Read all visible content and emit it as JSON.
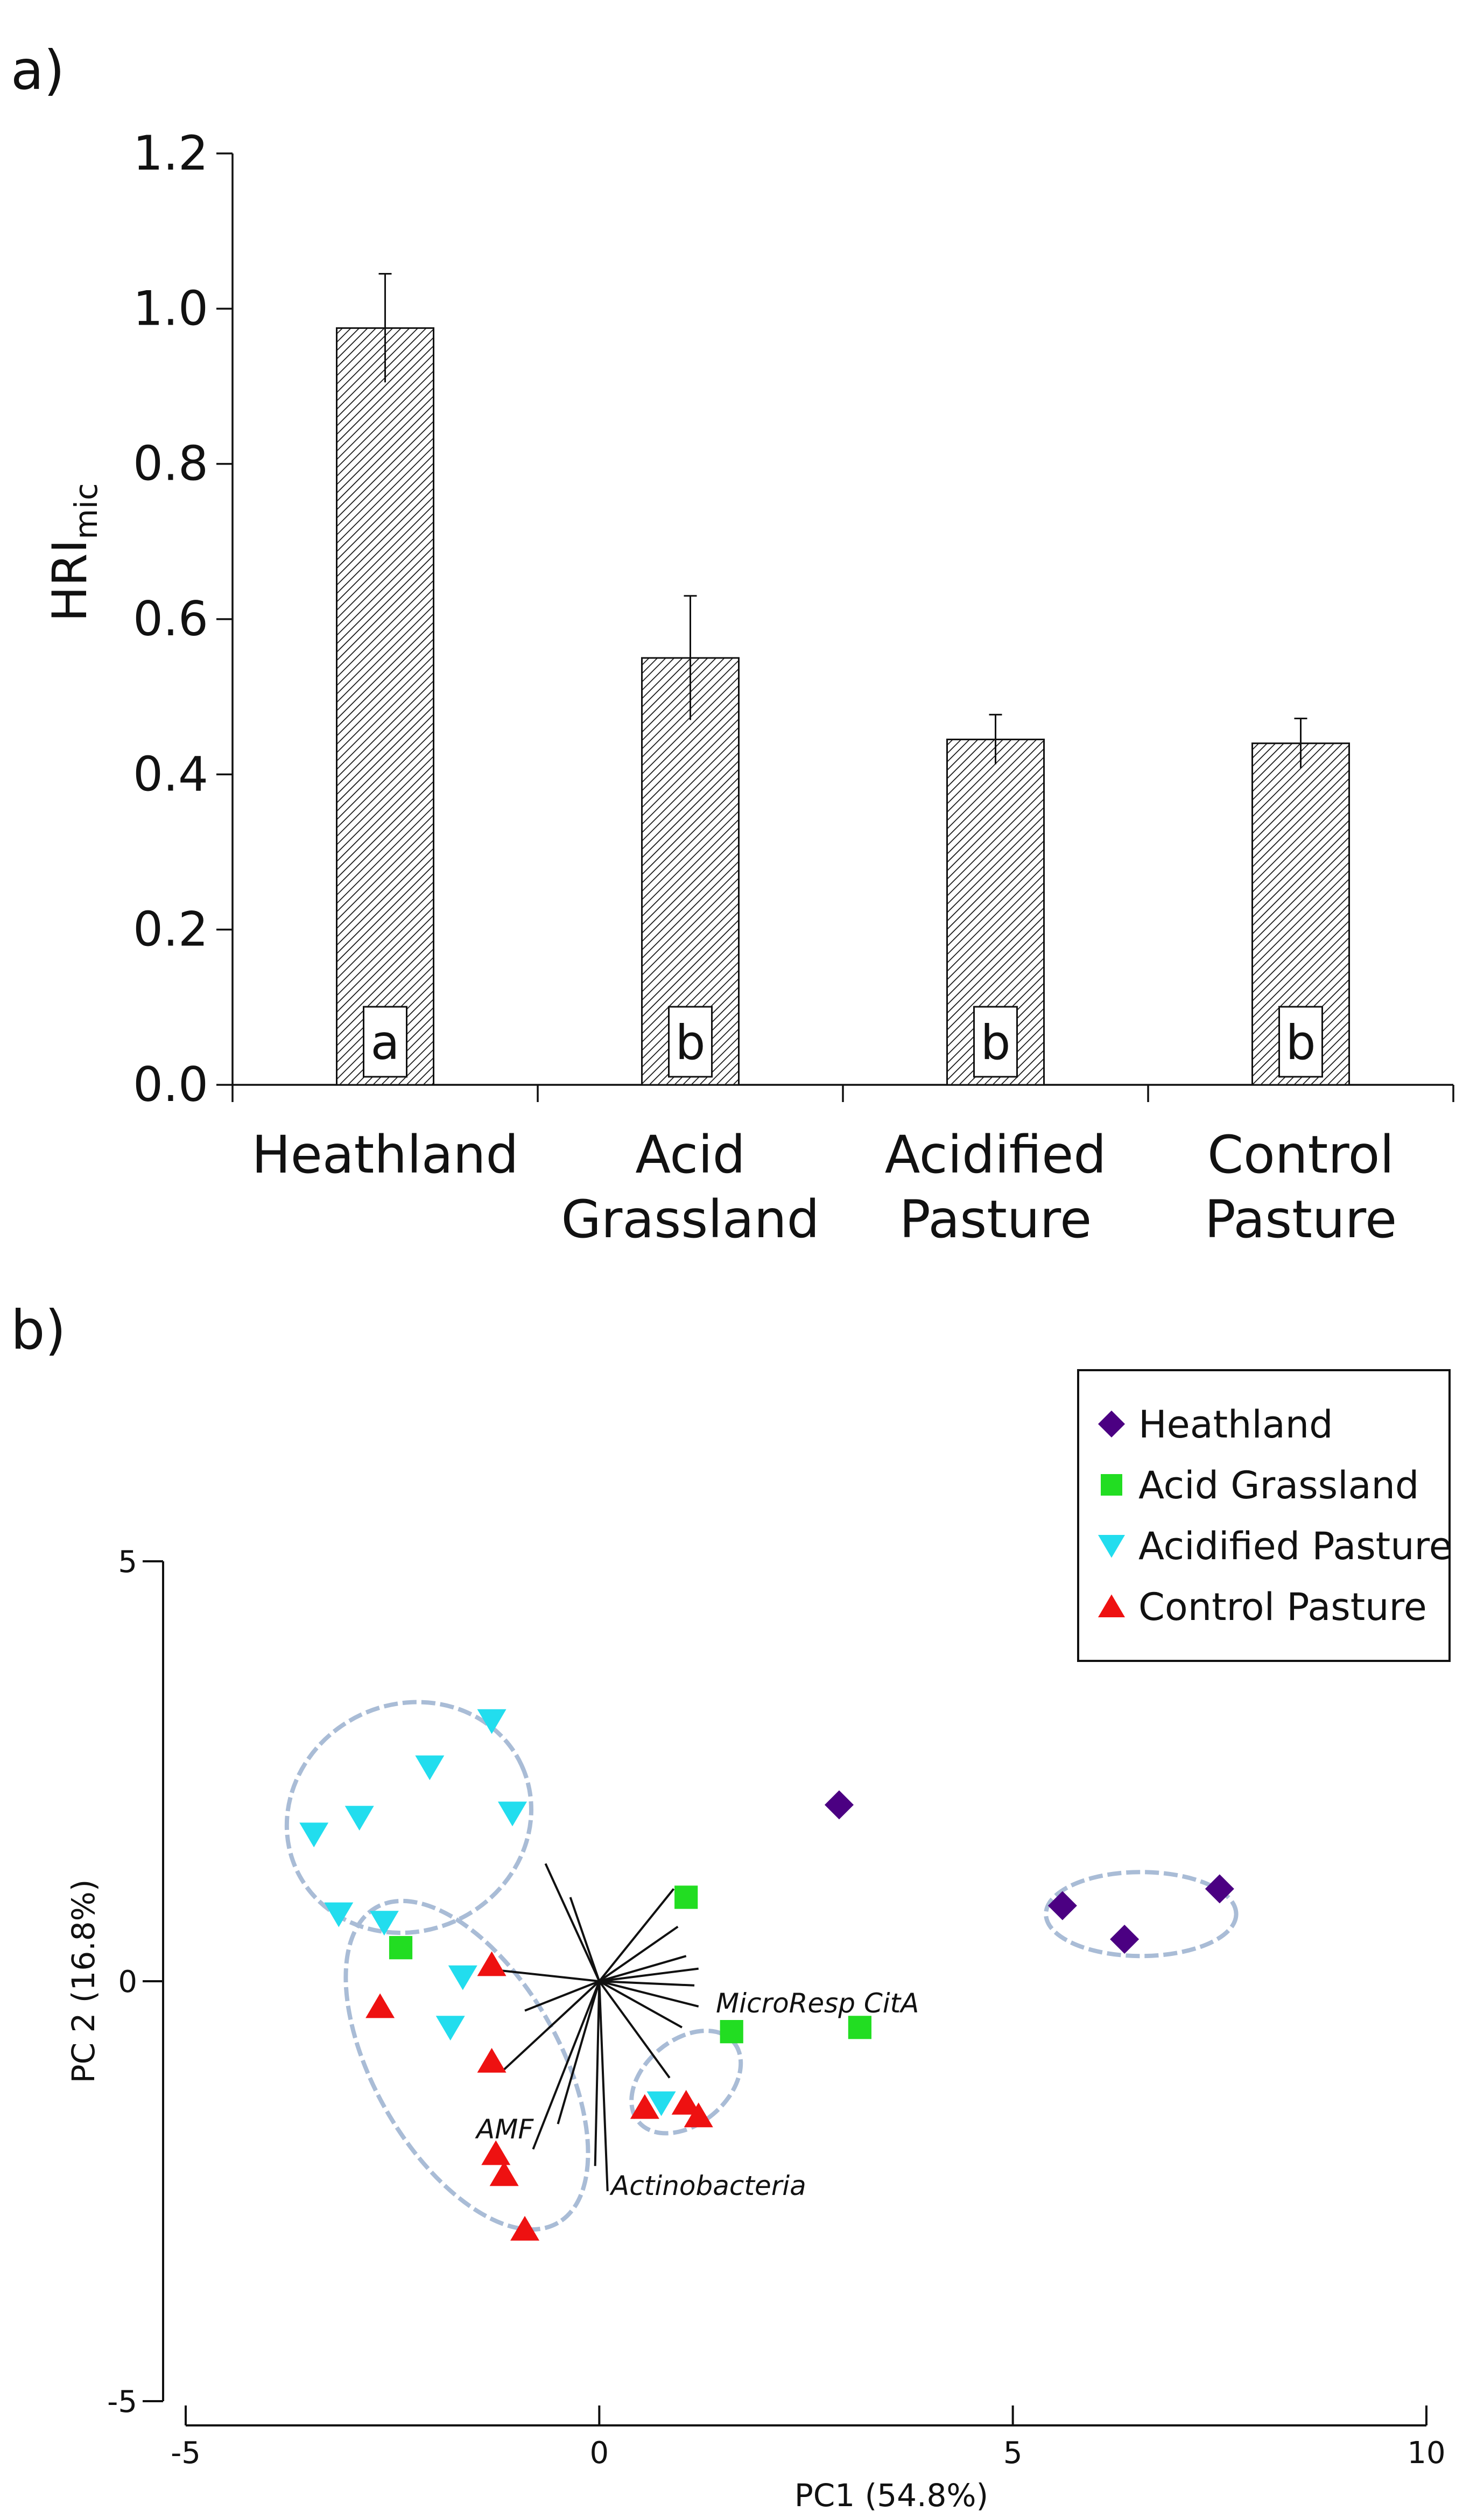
{
  "chart_data": [
    {
      "panel_label": "a)",
      "type": "bar",
      "ylabel_main": "HRI",
      "ylabel_sub": "mic",
      "ylim": [
        0,
        1.2
      ],
      "yticks": [
        "0.0",
        "0.2",
        "0.4",
        "0.6",
        "0.8",
        "1.0",
        "1.2"
      ],
      "yticks_values": [
        0,
        0.2,
        0.4,
        0.6,
        0.8,
        1.0,
        1.2
      ],
      "categories": [
        [
          "Heathland"
        ],
        [
          "Acid",
          "Grassland"
        ],
        [
          "Acidified",
          "Pasture"
        ],
        [
          "Control",
          "Pasture"
        ]
      ],
      "values": [
        0.975,
        0.55,
        0.445,
        0.44
      ],
      "errors": [
        0.07,
        0.08,
        0.032,
        0.032
      ],
      "letters": [
        "a",
        "b",
        "b",
        "b"
      ]
    },
    {
      "panel_label": "b)",
      "type": "scatter",
      "xlabel": "PC1 (54.8%)",
      "ylabel": "PC 2 (16.8%)",
      "xlim": [
        -5,
        10
      ],
      "ylim": [
        -5,
        5
      ],
      "xticks": [
        "-5",
        "0",
        "5",
        "10"
      ],
      "xticks_values": [
        -5,
        0,
        5,
        10
      ],
      "yticks": [
        "-5",
        "0",
        "5"
      ],
      "yticks_values": [
        -5,
        0,
        5
      ],
      "legend_position": "top-right",
      "series": [
        {
          "name": "Heathland",
          "marker": "diamond",
          "color": "#4b0082",
          "points": [
            [
              2.9,
              2.1
            ],
            [
              5.6,
              0.9
            ],
            [
              6.35,
              0.5
            ],
            [
              7.5,
              1.1
            ]
          ]
        },
        {
          "name": "Acid Grassland",
          "marker": "square",
          "color": "#22dd22",
          "points": [
            [
              -2.4,
              0.4
            ],
            [
              1.05,
              1.0
            ],
            [
              1.6,
              -0.6
            ],
            [
              3.15,
              -0.55
            ]
          ]
        },
        {
          "name": "Acidified Pasture",
          "marker": "triangle-down",
          "color": "#22ddee",
          "points": [
            [
              -3.45,
              1.75
            ],
            [
              -2.9,
              1.95
            ],
            [
              -2.05,
              2.55
            ],
            [
              -1.3,
              3.1
            ],
            [
              -1.05,
              2.0
            ],
            [
              -3.15,
              0.8
            ],
            [
              -2.6,
              0.7
            ],
            [
              -1.65,
              0.05
            ],
            [
              -1.8,
              -0.55
            ],
            [
              0.75,
              -1.45
            ]
          ]
        },
        {
          "name": "Control Pasture",
          "marker": "triangle-up",
          "color": "#ee1111",
          "points": [
            [
              -2.65,
              -0.3
            ],
            [
              -1.3,
              0.2
            ],
            [
              -1.3,
              -0.95
            ],
            [
              -1.25,
              -2.05
            ],
            [
              -1.15,
              -2.3
            ],
            [
              -0.9,
              -2.95
            ],
            [
              0.55,
              -1.5
            ],
            [
              1.05,
              -1.45
            ],
            [
              1.2,
              -1.6
            ]
          ]
        }
      ],
      "vectors": [
        {
          "label": "MicroResp CitA",
          "to": [
            1.2,
            -0.3
          ]
        },
        {
          "label": "AMF",
          "to": [
            -0.8,
            -2.0
          ]
        },
        {
          "label": "Actinobacteria",
          "to": [
            0.1,
            -2.5
          ]
        },
        {
          "label": "",
          "to": [
            -0.65,
            1.4
          ]
        },
        {
          "label": "",
          "to": [
            -0.35,
            1.0
          ]
        },
        {
          "label": "",
          "to": [
            0.9,
            1.1
          ]
        },
        {
          "label": "",
          "to": [
            0.95,
            0.65
          ]
        },
        {
          "label": "",
          "to": [
            1.05,
            0.3
          ]
        },
        {
          "label": "",
          "to": [
            1.2,
            0.15
          ]
        },
        {
          "label": "",
          "to": [
            1.15,
            -0.05
          ]
        },
        {
          "label": "",
          "to": [
            1.0,
            -0.55
          ]
        },
        {
          "label": "",
          "to": [
            -1.4,
            0.15
          ]
        },
        {
          "label": "",
          "to": [
            -0.9,
            -0.35
          ]
        },
        {
          "label": "",
          "to": [
            -1.15,
            -1.05
          ]
        },
        {
          "label": "",
          "to": [
            -0.5,
            -1.7
          ]
        },
        {
          "label": "",
          "to": [
            -0.05,
            -2.2
          ]
        },
        {
          "label": "",
          "to": [
            0.85,
            -1.15
          ]
        }
      ],
      "group_ellipses": [
        {
          "center": [
            -2.3,
            1.95
          ],
          "rx": 1.5,
          "ry": 1.35,
          "rotation_deg": -25
        },
        {
          "center": [
            -1.6,
            -1.0
          ],
          "rx": 2.2,
          "ry": 1.1,
          "rotation_deg": 60
        },
        {
          "center": [
            1.05,
            -1.2
          ],
          "rx": 0.75,
          "ry": 0.5,
          "rotation_deg": -40
        },
        {
          "center": [
            6.55,
            0.8
          ],
          "rx": 1.15,
          "ry": 0.5,
          "rotation_deg": 0
        }
      ]
    }
  ]
}
